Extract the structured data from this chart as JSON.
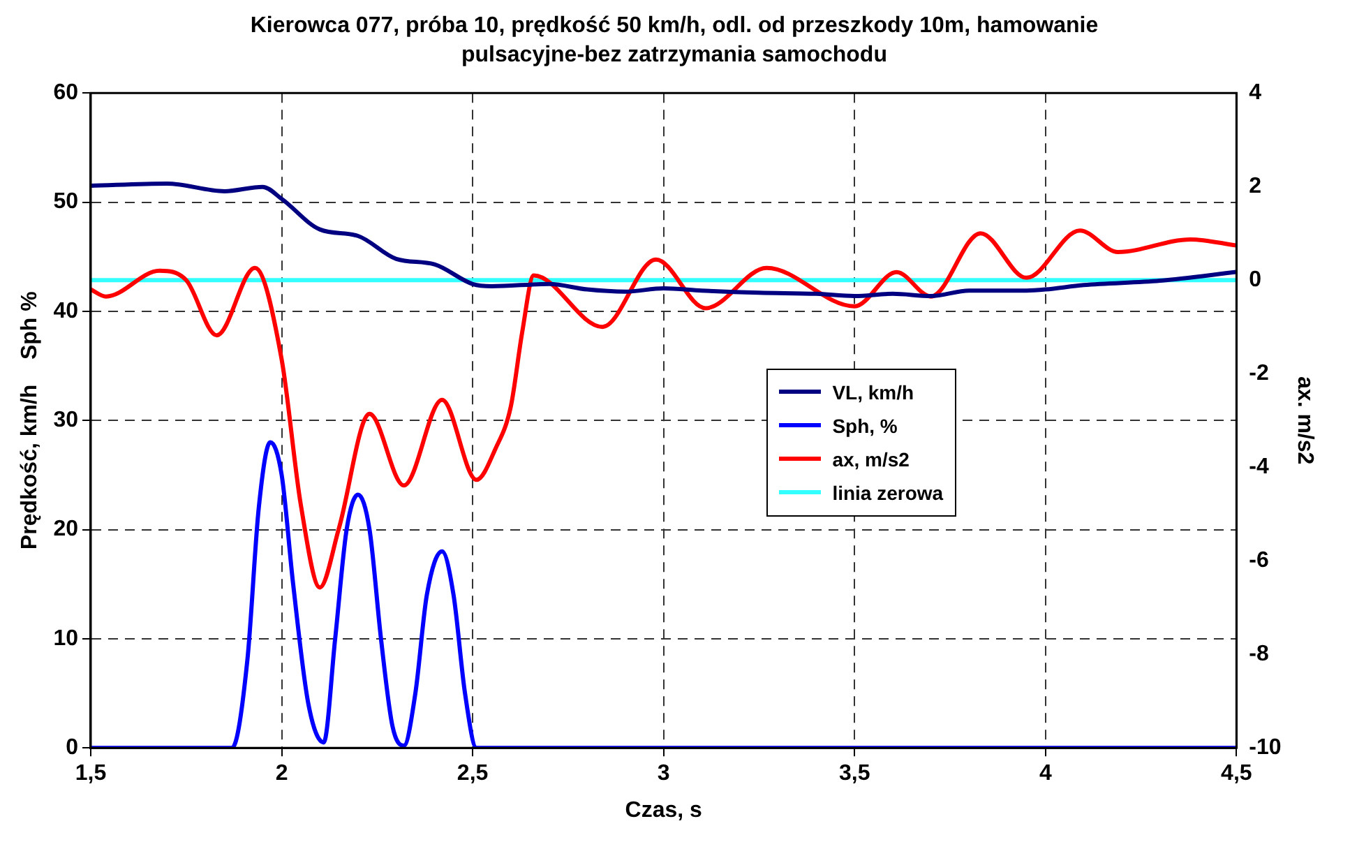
{
  "chart_data": {
    "type": "line",
    "title": "Kierowca 077, próba 10, prędkość 50 km/h, odl. od przeszkody 10m, hamowanie pulsacyjne-bez zatrzymania samochodu",
    "xlabel": "Czas, s",
    "ylabel": "Prędkość, km/h    Sph %",
    "y2label": "ax. m/s2",
    "xlim": [
      1.5,
      4.5
    ],
    "xticks": [
      {
        "value": 1.5,
        "label": "1,5"
      },
      2,
      {
        "value": 2.5,
        "label": "2,5"
      },
      3,
      {
        "value": 3.5,
        "label": "3,5"
      },
      4,
      {
        "value": 4.5,
        "label": "4,5"
      }
    ],
    "ylim": [
      0,
      60
    ],
    "yticks": [
      0,
      10,
      20,
      30,
      40,
      50,
      60
    ],
    "y2lim": [
      -10,
      4
    ],
    "y2ticks": [
      -10,
      -8,
      -6,
      -4,
      -2,
      0,
      2,
      4
    ],
    "grid": true,
    "legend": "right",
    "marker": "none",
    "line_style": "solid",
    "series": [
      {
        "name": "VL, km/h",
        "color": "#000080",
        "x": [
          1.5,
          1.7,
          1.85,
          1.95,
          2.0,
          2.1,
          2.2,
          2.3,
          2.4,
          2.5,
          2.55,
          2.7,
          2.8,
          2.9,
          3.0,
          3.1,
          3.25,
          3.4,
          3.5,
          3.6,
          3.7,
          3.8,
          3.95,
          4.0,
          4.1,
          4.3,
          4.5
        ],
        "values": [
          51.5,
          51.7,
          51.0,
          51.4,
          50.3,
          47.5,
          46.9,
          44.8,
          44.3,
          42.5,
          42.3,
          42.5,
          42.0,
          41.8,
          42.1,
          41.9,
          41.7,
          41.6,
          41.4,
          41.6,
          41.4,
          41.9,
          41.9,
          42.0,
          42.4,
          42.8,
          43.6
        ]
      },
      {
        "name": "Sph, %",
        "color": "#0000ff",
        "x": [
          1.5,
          1.87,
          1.91,
          1.94,
          1.97,
          2.0,
          2.03,
          2.07,
          2.11,
          2.14,
          2.17,
          2.2,
          2.23,
          2.26,
          2.29,
          2.32,
          2.35,
          2.38,
          2.42,
          2.45,
          2.48,
          2.51,
          4.5
        ],
        "values": [
          0,
          0,
          8,
          22,
          28,
          25,
          15,
          4,
          0.5,
          10,
          20,
          23.2,
          20,
          10,
          2,
          0.2,
          5,
          14,
          18,
          14,
          5,
          0,
          0
        ]
      },
      {
        "name": "ax, m/s2",
        "color": "#ff0000",
        "axis": "y2",
        "x": [
          1.5,
          1.54,
          1.68,
          1.75,
          1.83,
          1.93,
          2.0,
          2.05,
          2.1,
          2.15,
          2.23,
          2.32,
          2.42,
          2.51,
          2.56,
          2.6,
          2.63,
          2.66,
          2.84,
          2.98,
          3.11,
          3.27,
          3.5,
          3.61,
          3.7,
          3.83,
          3.95,
          4.09,
          4.19,
          4.38,
          4.5
        ],
        "values": [
          -0.2,
          -0.35,
          0.2,
          0.0,
          -1.18,
          0.26,
          -1.7,
          -4.8,
          -6.57,
          -5.3,
          -2.86,
          -4.39,
          -2.56,
          -4.27,
          -3.6,
          -2.7,
          -1.1,
          0.1,
          -1.0,
          0.44,
          -0.6,
          0.26,
          -0.56,
          0.17,
          -0.35,
          1.0,
          0.05,
          1.06,
          0.6,
          0.87,
          0.74
        ]
      },
      {
        "name": "linia zerowa",
        "color": "#33ffff",
        "axis": "y2",
        "x": [
          1.5,
          4.5
        ],
        "values": [
          0,
          0
        ]
      }
    ]
  }
}
